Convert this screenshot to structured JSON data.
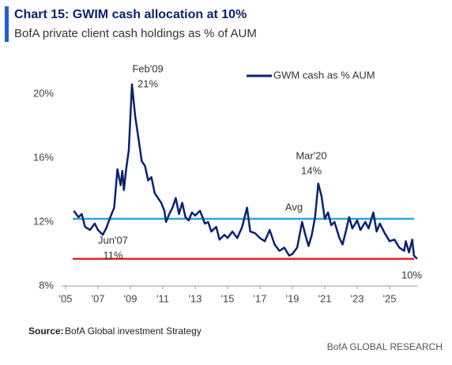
{
  "chart_data": {
    "type": "line",
    "title": "Chart 15: GWIM cash allocation at 10%",
    "subtitle": "BofA private client cash holdings as % of AUM",
    "source_label": "Source:",
    "source": "BofA Global investment Strategy",
    "footer": "BofA GLOBAL RESEARCH",
    "legend": "top-right",
    "xlim": [
      2005,
      2027
    ],
    "xticks": [
      {
        "value": 2005,
        "label": "'05"
      },
      {
        "value": 2007,
        "label": "'07"
      },
      {
        "value": 2009,
        "label": "'09"
      },
      {
        "value": 2011,
        "label": "'11"
      },
      {
        "value": 2013,
        "label": "'13"
      },
      {
        "value": 2015,
        "label": "'15"
      },
      {
        "value": 2017,
        "label": "'17"
      },
      {
        "value": 2019,
        "label": "'19"
      },
      {
        "value": 2021,
        "label": "'21"
      },
      {
        "value": 2023,
        "label": "'23"
      },
      {
        "value": 2025,
        "label": "'25"
      }
    ],
    "ylim": [
      8,
      22
    ],
    "yticks": [
      {
        "value": 8,
        "label": "8%"
      },
      {
        "value": 12,
        "label": "12%"
      },
      {
        "value": 16,
        "label": "16%"
      },
      {
        "value": 20,
        "label": "20%"
      }
    ],
    "reference_lines": [
      {
        "name": "Avg",
        "value": 12.2,
        "color": "#2ea6dd"
      },
      {
        "value": 9.7,
        "color": "#e3242e"
      }
    ],
    "annotations": [
      {
        "lines": [
          "Feb'09",
          "21%"
        ]
      },
      {
        "lines": [
          "Mar'20",
          "14%"
        ]
      },
      {
        "lines": [
          "Jun'07",
          "11%"
        ]
      },
      {
        "lines": [
          "10%"
        ]
      }
    ],
    "x": [
      2005.5,
      2005.8,
      2006.0,
      2006.2,
      2006.5,
      2006.8,
      2007.0,
      2007.3,
      2007.5,
      2007.8,
      2008.0,
      2008.2,
      2008.4,
      2008.5,
      2008.6,
      2008.75,
      2008.9,
      2009.1,
      2009.3,
      2009.5,
      2009.7,
      2009.9,
      2010.1,
      2010.3,
      2010.5,
      2010.7,
      2010.9,
      2011.1,
      2011.2,
      2011.4,
      2011.6,
      2011.8,
      2012.0,
      2012.2,
      2012.4,
      2012.6,
      2012.8,
      2013.0,
      2013.3,
      2013.6,
      2013.8,
      2014.0,
      2014.3,
      2014.5,
      2014.8,
      2015.0,
      2015.3,
      2015.6,
      2015.9,
      2016.2,
      2016.4,
      2016.7,
      2017.0,
      2017.3,
      2017.6,
      2017.9,
      2018.2,
      2018.5,
      2018.8,
      2019.0,
      2019.3,
      2019.5,
      2019.6,
      2019.8,
      2020.0,
      2020.2,
      2020.4,
      2020.6,
      2020.8,
      2021.0,
      2021.2,
      2021.4,
      2021.6,
      2021.9,
      2022.1,
      2022.3,
      2022.5,
      2022.7,
      2023.0,
      2023.2,
      2023.5,
      2023.7,
      2024.0,
      2024.2,
      2024.4,
      2024.7,
      2025.0,
      2025.3,
      2025.6,
      2025.9,
      2026.0,
      2026.2,
      2026.4,
      2026.5,
      2026.7
    ],
    "series": [
      {
        "name": "GWM cash as % AUM",
        "color": "#0c2270",
        "values": [
          12.7,
          12.3,
          12.5,
          11.7,
          11.5,
          11.9,
          11.5,
          11.2,
          11.6,
          12.4,
          12.9,
          15.3,
          14.3,
          15.2,
          14.0,
          15.4,
          16.5,
          20.6,
          18.6,
          17.2,
          15.8,
          15.5,
          14.6,
          14.8,
          13.8,
          13.5,
          13.2,
          12.7,
          12.0,
          12.5,
          12.9,
          13.5,
          12.5,
          13.2,
          12.3,
          12.1,
          12.6,
          12.4,
          12.7,
          11.9,
          12.0,
          11.4,
          11.7,
          10.9,
          11.2,
          11.0,
          11.4,
          11.0,
          11.7,
          12.9,
          11.4,
          11.3,
          11.0,
          10.8,
          11.5,
          10.6,
          10.2,
          10.4,
          9.9,
          10.0,
          10.4,
          11.5,
          12.0,
          11.2,
          10.5,
          11.2,
          12.3,
          14.4,
          13.6,
          12.2,
          12.6,
          11.8,
          12.0,
          11.0,
          10.6,
          11.4,
          12.3,
          11.6,
          12.1,
          11.5,
          12.0,
          11.6,
          12.6,
          11.4,
          11.9,
          11.3,
          10.8,
          10.9,
          10.4,
          10.2,
          10.8,
          10.1,
          10.9,
          9.9,
          9.7
        ]
      }
    ]
  }
}
